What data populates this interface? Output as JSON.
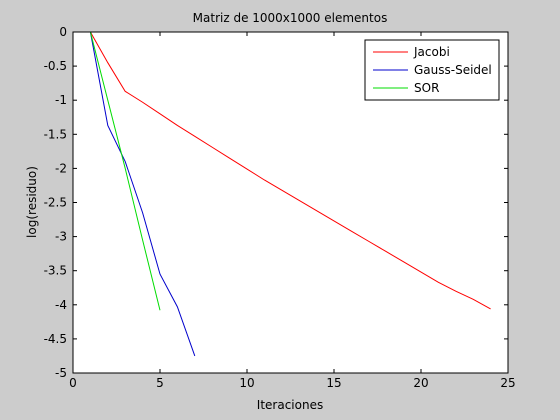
{
  "chart_data": {
    "type": "line",
    "title": "Matriz de 1000x1000 elementos",
    "xlabel": "Iteraciones",
    "ylabel": "log(residuo)",
    "xlim": [
      0,
      25
    ],
    "ylim": [
      -5,
      0
    ],
    "xticks": [
      0,
      5,
      10,
      15,
      20,
      25
    ],
    "yticks": [
      0,
      -0.5,
      -1,
      -1.5,
      -2,
      -2.5,
      -3,
      -3.5,
      -4,
      -4.5,
      -5
    ],
    "xtick_labels": [
      "0",
      "5",
      "10",
      "15",
      "20",
      "25"
    ],
    "ytick_labels": [
      "0",
      "-0.5",
      "-1",
      "-1.5",
      "-2",
      "-2.5",
      "-3",
      "-3.5",
      "-4",
      "-4.5",
      "-5"
    ],
    "grid": false,
    "legend_position": "top-right",
    "series": [
      {
        "name": "Jacobi",
        "color": "#ff0000",
        "x": [
          1,
          2,
          3,
          4,
          5,
          6,
          7,
          8,
          9,
          10,
          11,
          12,
          13,
          14,
          15,
          16,
          17,
          18,
          19,
          20,
          21,
          22,
          23,
          24
        ],
        "y": [
          0,
          -0.45,
          -0.87,
          -1.03,
          -1.2,
          -1.37,
          -1.53,
          -1.69,
          -1.85,
          -2.01,
          -2.17,
          -2.32,
          -2.47,
          -2.62,
          -2.77,
          -2.92,
          -3.07,
          -3.22,
          -3.37,
          -3.52,
          -3.67,
          -3.8,
          -3.92,
          -4.06
        ]
      },
      {
        "name": "Gauss-Seidel",
        "color": "#0000cc",
        "x": [
          1,
          2,
          3,
          4,
          5,
          6,
          7
        ],
        "y": [
          0,
          -1.37,
          -1.9,
          -2.65,
          -3.55,
          -4.03,
          -4.75
        ]
      },
      {
        "name": "SOR",
        "color": "#00dd00",
        "x": [
          1,
          2,
          3,
          4,
          5
        ],
        "y": [
          0,
          -1.0,
          -2.0,
          -3.05,
          -4.08
        ]
      }
    ]
  }
}
